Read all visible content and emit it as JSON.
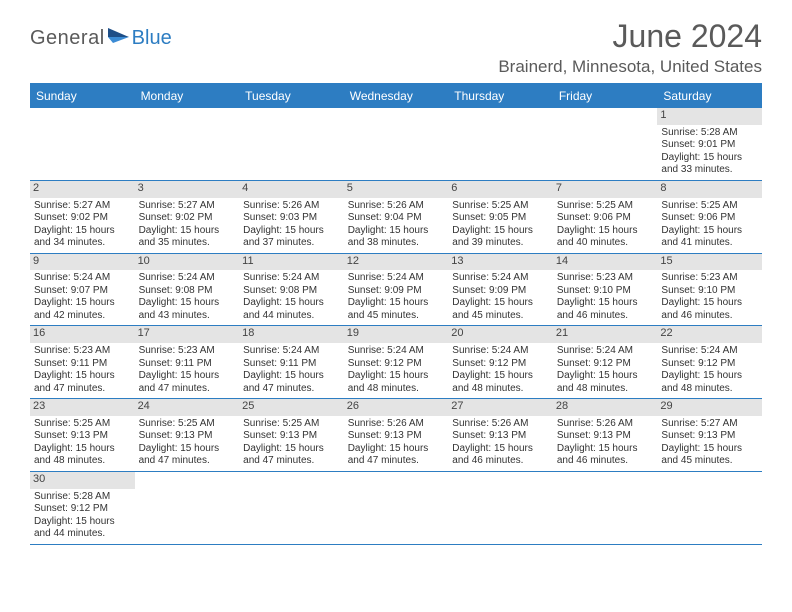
{
  "logo": {
    "word1": "General",
    "word2": "Blue"
  },
  "title": "June 2024",
  "location": "Brainerd, Minnesota, United States",
  "colors": {
    "accent": "#2d7dc2",
    "header_text": "#ffffff",
    "body_text": "#333333",
    "muted_text": "#5a5a5a",
    "daynum_bg": "#e4e4e4",
    "background": "#ffffff"
  },
  "day_headers": [
    "Sunday",
    "Monday",
    "Tuesday",
    "Wednesday",
    "Thursday",
    "Friday",
    "Saturday"
  ],
  "weeks": [
    [
      {
        "empty": true
      },
      {
        "empty": true
      },
      {
        "empty": true
      },
      {
        "empty": true
      },
      {
        "empty": true
      },
      {
        "empty": true
      },
      {
        "num": "1",
        "sunrise": "Sunrise: 5:28 AM",
        "sunset": "Sunset: 9:01 PM",
        "day1": "Daylight: 15 hours",
        "day2": "and 33 minutes."
      }
    ],
    [
      {
        "num": "2",
        "sunrise": "Sunrise: 5:27 AM",
        "sunset": "Sunset: 9:02 PM",
        "day1": "Daylight: 15 hours",
        "day2": "and 34 minutes."
      },
      {
        "num": "3",
        "sunrise": "Sunrise: 5:27 AM",
        "sunset": "Sunset: 9:02 PM",
        "day1": "Daylight: 15 hours",
        "day2": "and 35 minutes."
      },
      {
        "num": "4",
        "sunrise": "Sunrise: 5:26 AM",
        "sunset": "Sunset: 9:03 PM",
        "day1": "Daylight: 15 hours",
        "day2": "and 37 minutes."
      },
      {
        "num": "5",
        "sunrise": "Sunrise: 5:26 AM",
        "sunset": "Sunset: 9:04 PM",
        "day1": "Daylight: 15 hours",
        "day2": "and 38 minutes."
      },
      {
        "num": "6",
        "sunrise": "Sunrise: 5:25 AM",
        "sunset": "Sunset: 9:05 PM",
        "day1": "Daylight: 15 hours",
        "day2": "and 39 minutes."
      },
      {
        "num": "7",
        "sunrise": "Sunrise: 5:25 AM",
        "sunset": "Sunset: 9:06 PM",
        "day1": "Daylight: 15 hours",
        "day2": "and 40 minutes."
      },
      {
        "num": "8",
        "sunrise": "Sunrise: 5:25 AM",
        "sunset": "Sunset: 9:06 PM",
        "day1": "Daylight: 15 hours",
        "day2": "and 41 minutes."
      }
    ],
    [
      {
        "num": "9",
        "sunrise": "Sunrise: 5:24 AM",
        "sunset": "Sunset: 9:07 PM",
        "day1": "Daylight: 15 hours",
        "day2": "and 42 minutes."
      },
      {
        "num": "10",
        "sunrise": "Sunrise: 5:24 AM",
        "sunset": "Sunset: 9:08 PM",
        "day1": "Daylight: 15 hours",
        "day2": "and 43 minutes."
      },
      {
        "num": "11",
        "sunrise": "Sunrise: 5:24 AM",
        "sunset": "Sunset: 9:08 PM",
        "day1": "Daylight: 15 hours",
        "day2": "and 44 minutes."
      },
      {
        "num": "12",
        "sunrise": "Sunrise: 5:24 AM",
        "sunset": "Sunset: 9:09 PM",
        "day1": "Daylight: 15 hours",
        "day2": "and 45 minutes."
      },
      {
        "num": "13",
        "sunrise": "Sunrise: 5:24 AM",
        "sunset": "Sunset: 9:09 PM",
        "day1": "Daylight: 15 hours",
        "day2": "and 45 minutes."
      },
      {
        "num": "14",
        "sunrise": "Sunrise: 5:23 AM",
        "sunset": "Sunset: 9:10 PM",
        "day1": "Daylight: 15 hours",
        "day2": "and 46 minutes."
      },
      {
        "num": "15",
        "sunrise": "Sunrise: 5:23 AM",
        "sunset": "Sunset: 9:10 PM",
        "day1": "Daylight: 15 hours",
        "day2": "and 46 minutes."
      }
    ],
    [
      {
        "num": "16",
        "sunrise": "Sunrise: 5:23 AM",
        "sunset": "Sunset: 9:11 PM",
        "day1": "Daylight: 15 hours",
        "day2": "and 47 minutes."
      },
      {
        "num": "17",
        "sunrise": "Sunrise: 5:23 AM",
        "sunset": "Sunset: 9:11 PM",
        "day1": "Daylight: 15 hours",
        "day2": "and 47 minutes."
      },
      {
        "num": "18",
        "sunrise": "Sunrise: 5:24 AM",
        "sunset": "Sunset: 9:11 PM",
        "day1": "Daylight: 15 hours",
        "day2": "and 47 minutes."
      },
      {
        "num": "19",
        "sunrise": "Sunrise: 5:24 AM",
        "sunset": "Sunset: 9:12 PM",
        "day1": "Daylight: 15 hours",
        "day2": "and 48 minutes."
      },
      {
        "num": "20",
        "sunrise": "Sunrise: 5:24 AM",
        "sunset": "Sunset: 9:12 PM",
        "day1": "Daylight: 15 hours",
        "day2": "and 48 minutes."
      },
      {
        "num": "21",
        "sunrise": "Sunrise: 5:24 AM",
        "sunset": "Sunset: 9:12 PM",
        "day1": "Daylight: 15 hours",
        "day2": "and 48 minutes."
      },
      {
        "num": "22",
        "sunrise": "Sunrise: 5:24 AM",
        "sunset": "Sunset: 9:12 PM",
        "day1": "Daylight: 15 hours",
        "day2": "and 48 minutes."
      }
    ],
    [
      {
        "num": "23",
        "sunrise": "Sunrise: 5:25 AM",
        "sunset": "Sunset: 9:13 PM",
        "day1": "Daylight: 15 hours",
        "day2": "and 48 minutes."
      },
      {
        "num": "24",
        "sunrise": "Sunrise: 5:25 AM",
        "sunset": "Sunset: 9:13 PM",
        "day1": "Daylight: 15 hours",
        "day2": "and 47 minutes."
      },
      {
        "num": "25",
        "sunrise": "Sunrise: 5:25 AM",
        "sunset": "Sunset: 9:13 PM",
        "day1": "Daylight: 15 hours",
        "day2": "and 47 minutes."
      },
      {
        "num": "26",
        "sunrise": "Sunrise: 5:26 AM",
        "sunset": "Sunset: 9:13 PM",
        "day1": "Daylight: 15 hours",
        "day2": "and 47 minutes."
      },
      {
        "num": "27",
        "sunrise": "Sunrise: 5:26 AM",
        "sunset": "Sunset: 9:13 PM",
        "day1": "Daylight: 15 hours",
        "day2": "and 46 minutes."
      },
      {
        "num": "28",
        "sunrise": "Sunrise: 5:26 AM",
        "sunset": "Sunset: 9:13 PM",
        "day1": "Daylight: 15 hours",
        "day2": "and 46 minutes."
      },
      {
        "num": "29",
        "sunrise": "Sunrise: 5:27 AM",
        "sunset": "Sunset: 9:13 PM",
        "day1": "Daylight: 15 hours",
        "day2": "and 45 minutes."
      }
    ],
    [
      {
        "num": "30",
        "sunrise": "Sunrise: 5:28 AM",
        "sunset": "Sunset: 9:12 PM",
        "day1": "Daylight: 15 hours",
        "day2": "and 44 minutes."
      },
      {
        "empty": true
      },
      {
        "empty": true
      },
      {
        "empty": true
      },
      {
        "empty": true
      },
      {
        "empty": true
      },
      {
        "empty": true
      }
    ]
  ]
}
